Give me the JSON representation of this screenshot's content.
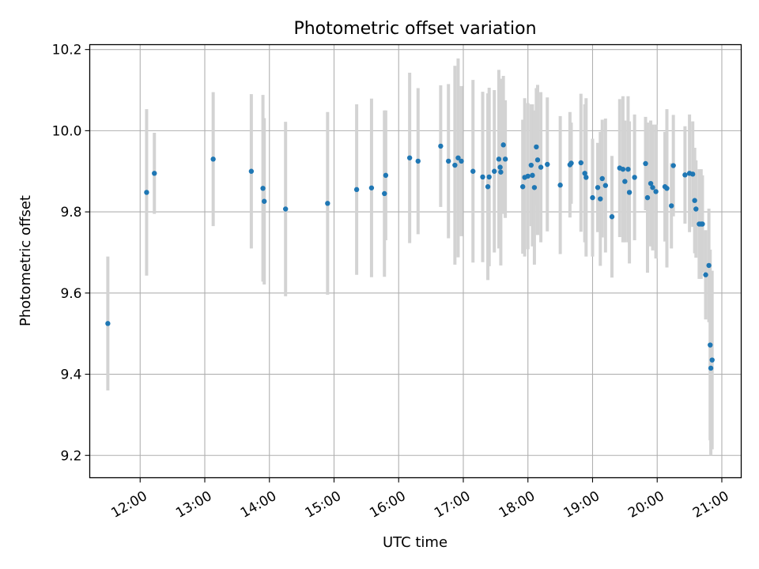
{
  "chart_data": {
    "type": "scatter",
    "title": "Photometric offset variation",
    "xlabel": "UTC time",
    "ylabel": "Photometric offset",
    "x_unit": "hours UTC",
    "xlim": [
      11.22,
      21.3
    ],
    "ylim": [
      9.145,
      10.212
    ],
    "grid": true,
    "x_ticks": [
      {
        "value": 12,
        "label": "12:00"
      },
      {
        "value": 13,
        "label": "13:00"
      },
      {
        "value": 14,
        "label": "14:00"
      },
      {
        "value": 15,
        "label": "15:00"
      },
      {
        "value": 16,
        "label": "16:00"
      },
      {
        "value": 17,
        "label": "17:00"
      },
      {
        "value": 18,
        "label": "18:00"
      },
      {
        "value": 19,
        "label": "19:00"
      },
      {
        "value": 20,
        "label": "20:00"
      },
      {
        "value": 21,
        "label": "21:00"
      }
    ],
    "y_ticks": [
      {
        "value": 9.2,
        "label": "9.2"
      },
      {
        "value": 9.4,
        "label": "9.4"
      },
      {
        "value": 9.6,
        "label": "9.6"
      },
      {
        "value": 9.8,
        "label": "9.8"
      },
      {
        "value": 10.0,
        "label": "10.0"
      },
      {
        "value": 10.2,
        "label": "10.2"
      }
    ],
    "series": [
      {
        "name": "offset",
        "point_color": "#1f77b4",
        "errorbar_color": "#d3d3d3",
        "x": [
          11.5,
          12.1,
          12.22,
          13.13,
          13.72,
          13.9,
          13.92,
          14.25,
          14.9,
          15.35,
          15.58,
          15.78,
          15.8,
          16.17,
          16.3,
          16.65,
          16.77,
          16.87,
          16.92,
          16.97,
          17.15,
          17.3,
          17.38,
          17.4,
          17.48,
          17.55,
          17.57,
          17.58,
          17.62,
          17.65,
          17.92,
          17.95,
          18.0,
          18.05,
          18.07,
          18.1,
          18.13,
          18.15,
          18.2,
          18.3,
          18.5,
          18.65,
          18.67,
          18.82,
          18.88,
          18.9,
          19.0,
          19.08,
          19.12,
          19.15,
          19.2,
          19.3,
          19.42,
          19.47,
          19.5,
          19.55,
          19.57,
          19.65,
          19.82,
          19.85,
          19.9,
          19.93,
          19.98,
          20.12,
          20.15,
          20.22,
          20.25,
          20.43,
          20.5,
          20.55,
          20.58,
          20.6,
          20.65,
          20.68,
          20.7,
          20.75,
          20.8,
          20.82,
          20.83,
          20.85
        ],
        "y": [
          9.525,
          9.848,
          9.895,
          9.93,
          9.9,
          9.858,
          9.826,
          9.807,
          9.821,
          9.855,
          9.859,
          9.845,
          9.89,
          9.933,
          9.925,
          9.962,
          9.925,
          9.915,
          9.933,
          9.925,
          9.9,
          9.886,
          9.862,
          9.886,
          9.9,
          9.93,
          9.91,
          9.898,
          9.965,
          9.93,
          9.862,
          9.885,
          9.888,
          9.915,
          9.89,
          9.86,
          9.96,
          9.928,
          9.91,
          9.917,
          9.866,
          9.916,
          9.92,
          9.921,
          9.895,
          9.885,
          9.835,
          9.86,
          9.832,
          9.882,
          9.865,
          9.788,
          9.908,
          9.905,
          9.875,
          9.905,
          9.848,
          9.885,
          9.919,
          9.835,
          9.87,
          9.86,
          9.85,
          9.862,
          9.858,
          9.815,
          9.914,
          9.891,
          9.895,
          9.893,
          9.828,
          9.807,
          9.77,
          9.77,
          9.77,
          9.645,
          9.668,
          9.472,
          9.415,
          9.435
        ],
        "yerr": [
          0.165,
          0.205,
          0.1,
          0.165,
          0.19,
          0.23,
          0.205,
          0.215,
          0.225,
          0.21,
          0.22,
          0.205,
          0.16,
          0.21,
          0.18,
          0.15,
          0.19,
          0.245,
          0.245,
          0.185,
          0.225,
          0.21,
          0.23,
          0.22,
          0.2,
          0.22,
          0.175,
          0.23,
          0.17,
          0.145,
          0.165,
          0.195,
          0.18,
          0.15,
          0.175,
          0.19,
          0.145,
          0.185,
          0.185,
          0.165,
          0.17,
          0.13,
          0.1,
          0.17,
          0.17,
          0.195,
          0.145,
          0.11,
          0.165,
          0.145,
          0.165,
          0.15,
          0.17,
          0.18,
          0.15,
          0.18,
          0.175,
          0.155,
          0.115,
          0.185,
          0.155,
          0.155,
          0.165,
          0.135,
          0.195,
          0.105,
          0.125,
          0.12,
          0.145,
          0.13,
          0.13,
          0.12,
          0.135,
          0.135,
          0.12,
          0.11,
          0.14,
          0.235,
          0.215,
          0.22
        ]
      }
    ]
  }
}
